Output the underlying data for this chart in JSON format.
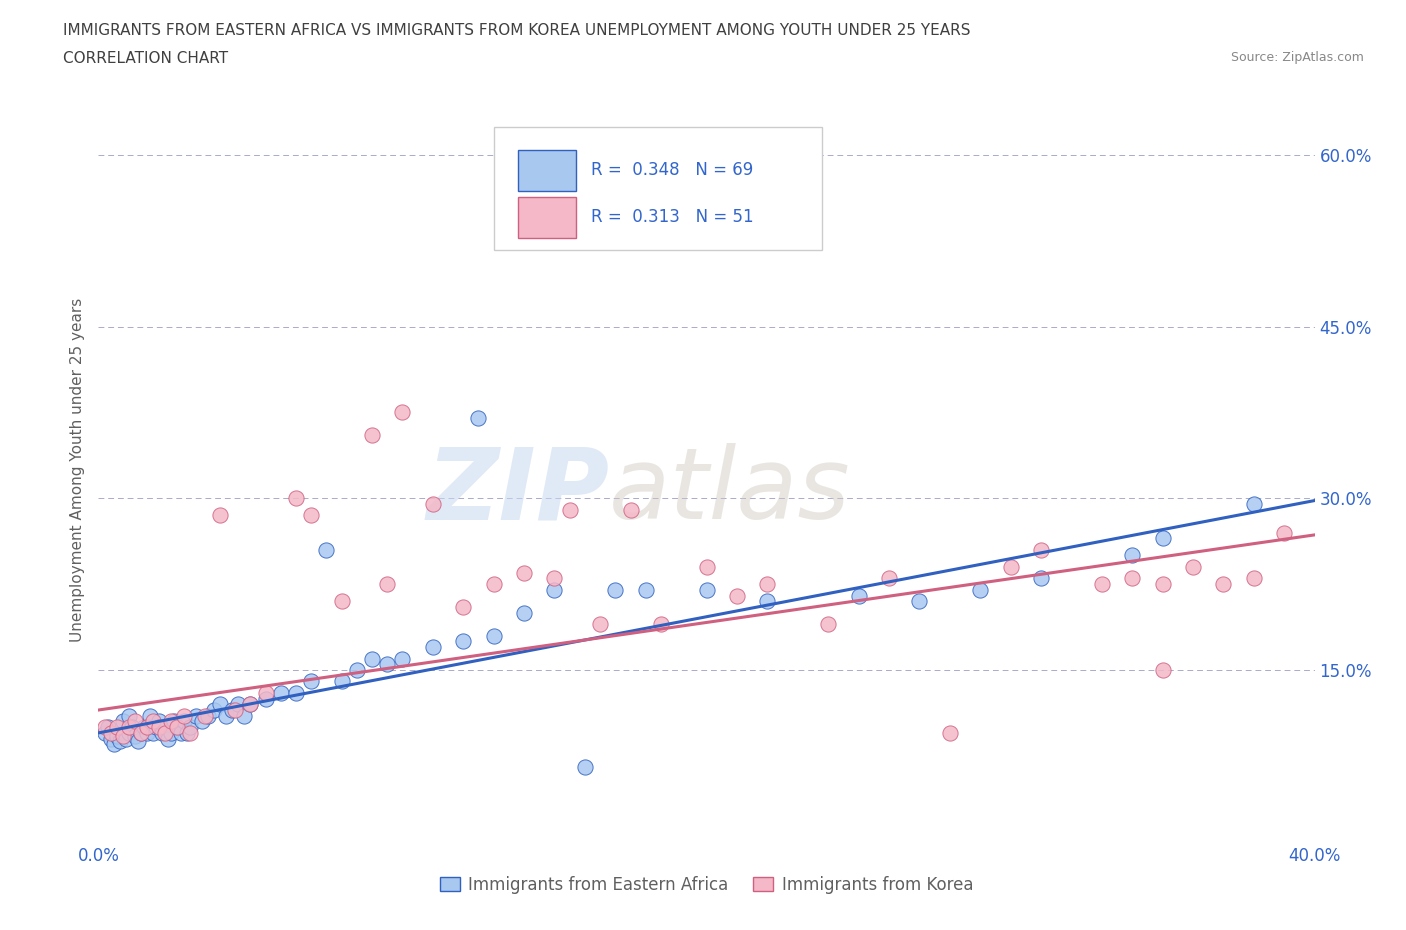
{
  "title_line1": "IMMIGRANTS FROM EASTERN AFRICA VS IMMIGRANTS FROM KOREA UNEMPLOYMENT AMONG YOUTH UNDER 25 YEARS",
  "title_line2": "CORRELATION CHART",
  "source_text": "Source: ZipAtlas.com",
  "ylabel": "Unemployment Among Youth under 25 years",
  "xlim": [
    0.0,
    0.4
  ],
  "ylim": [
    0.0,
    0.65
  ],
  "xtick_vals": [
    0.0,
    0.1,
    0.2,
    0.3,
    0.4
  ],
  "ytick_vals": [
    0.0,
    0.15,
    0.3,
    0.45,
    0.6
  ],
  "ytick_labels": [
    "",
    "15.0%",
    "30.0%",
    "45.0%",
    "60.0%"
  ],
  "R_blue": 0.348,
  "N_blue": 69,
  "R_pink": 0.313,
  "N_pink": 51,
  "color_blue": "#a8c8f0",
  "color_pink": "#f4b8c8",
  "line_blue": "#3060c0",
  "line_pink": "#d06080",
  "legend_label_blue": "Immigrants from Eastern Africa",
  "legend_label_pink": "Immigrants from Korea",
  "watermark_zip": "ZIP",
  "watermark_atlas": "atlas",
  "blue_scatter_x": [
    0.002,
    0.003,
    0.004,
    0.005,
    0.006,
    0.007,
    0.008,
    0.008,
    0.009,
    0.01,
    0.01,
    0.011,
    0.012,
    0.013,
    0.014,
    0.015,
    0.016,
    0.017,
    0.018,
    0.019,
    0.02,
    0.021,
    0.022,
    0.023,
    0.024,
    0.025,
    0.026,
    0.027,
    0.028,
    0.029,
    0.03,
    0.032,
    0.034,
    0.036,
    0.038,
    0.04,
    0.042,
    0.044,
    0.046,
    0.048,
    0.05,
    0.055,
    0.06,
    0.065,
    0.07,
    0.075,
    0.08,
    0.085,
    0.09,
    0.095,
    0.1,
    0.11,
    0.12,
    0.125,
    0.13,
    0.14,
    0.15,
    0.16,
    0.17,
    0.18,
    0.2,
    0.22,
    0.25,
    0.27,
    0.29,
    0.31,
    0.34,
    0.35,
    0.38
  ],
  "blue_scatter_y": [
    0.095,
    0.1,
    0.09,
    0.085,
    0.092,
    0.088,
    0.095,
    0.105,
    0.09,
    0.095,
    0.11,
    0.1,
    0.092,
    0.088,
    0.095,
    0.1,
    0.095,
    0.11,
    0.095,
    0.1,
    0.105,
    0.095,
    0.1,
    0.09,
    0.095,
    0.105,
    0.1,
    0.095,
    0.105,
    0.095,
    0.1,
    0.11,
    0.105,
    0.11,
    0.115,
    0.12,
    0.11,
    0.115,
    0.12,
    0.11,
    0.12,
    0.125,
    0.13,
    0.13,
    0.14,
    0.255,
    0.14,
    0.15,
    0.16,
    0.155,
    0.16,
    0.17,
    0.175,
    0.37,
    0.18,
    0.2,
    0.22,
    0.065,
    0.22,
    0.22,
    0.22,
    0.21,
    0.215,
    0.21,
    0.22,
    0.23,
    0.25,
    0.265,
    0.295
  ],
  "pink_scatter_x": [
    0.002,
    0.004,
    0.006,
    0.008,
    0.01,
    0.012,
    0.014,
    0.016,
    0.018,
    0.02,
    0.022,
    0.024,
    0.026,
    0.028,
    0.03,
    0.035,
    0.04,
    0.045,
    0.05,
    0.055,
    0.065,
    0.07,
    0.08,
    0.09,
    0.095,
    0.1,
    0.11,
    0.12,
    0.13,
    0.14,
    0.15,
    0.155,
    0.165,
    0.175,
    0.185,
    0.2,
    0.21,
    0.22,
    0.24,
    0.26,
    0.28,
    0.3,
    0.31,
    0.33,
    0.34,
    0.35,
    0.36,
    0.37,
    0.38,
    0.39,
    0.35
  ],
  "pink_scatter_y": [
    0.1,
    0.095,
    0.1,
    0.092,
    0.1,
    0.105,
    0.095,
    0.1,
    0.105,
    0.1,
    0.095,
    0.105,
    0.1,
    0.11,
    0.095,
    0.11,
    0.285,
    0.115,
    0.12,
    0.13,
    0.3,
    0.285,
    0.21,
    0.355,
    0.225,
    0.375,
    0.295,
    0.205,
    0.225,
    0.235,
    0.23,
    0.29,
    0.19,
    0.29,
    0.19,
    0.24,
    0.215,
    0.225,
    0.19,
    0.23,
    0.095,
    0.24,
    0.255,
    0.225,
    0.23,
    0.225,
    0.24,
    0.225,
    0.23,
    0.27,
    0.15
  ],
  "bg_color": "#ffffff",
  "grid_color": "#aaaacc",
  "title_color": "#404040",
  "axis_label_color": "#606060",
  "tick_color": "#3366cc"
}
